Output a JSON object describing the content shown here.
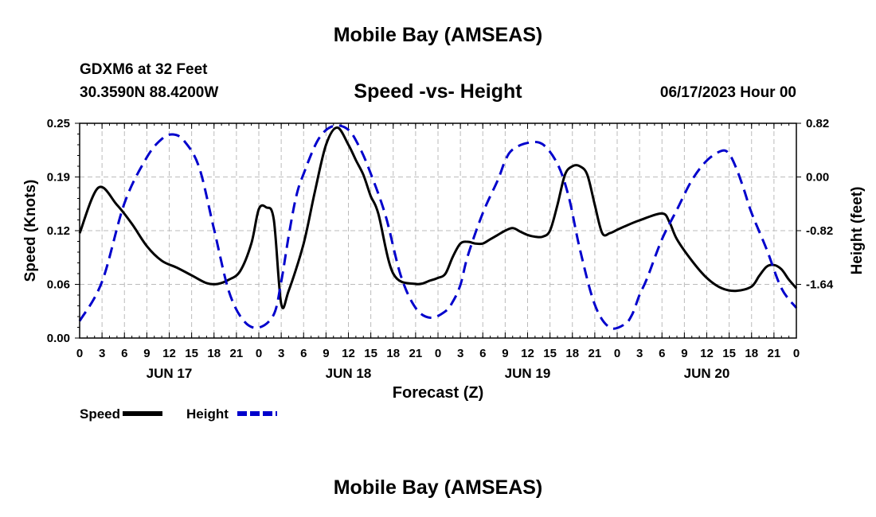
{
  "header": {
    "title": "Mobile Bay (AMSEAS)",
    "station": "GDXM6 at 32 Feet",
    "coords": "30.3590N  88.4200W",
    "subtitle": "Speed -vs- Height",
    "datetime": "06/17/2023 Hour 00"
  },
  "footer": {
    "title": "Mobile Bay (AMSEAS)"
  },
  "chart_data": {
    "type": "line",
    "title": "Speed -vs- Height",
    "xlabel": "Forecast (Z)",
    "ylabel_left": "Speed (Knots)",
    "ylabel_right": "Height (feet)",
    "x_unit": "forecast hour from 06/17/2023 00Z",
    "x_range": [
      0,
      96
    ],
    "x_tick_labels": [
      "0",
      "3",
      "6",
      "9",
      "12",
      "15",
      "18",
      "21",
      "0",
      "3",
      "6",
      "9",
      "12",
      "15",
      "18",
      "21",
      "0",
      "3",
      "6",
      "9",
      "12",
      "15",
      "18",
      "21",
      "0",
      "3",
      "6",
      "9",
      "12",
      "15",
      "18",
      "21",
      "0"
    ],
    "day_labels": [
      "JUN 17",
      "JUN 18",
      "JUN 19",
      "JUN 20"
    ],
    "left_ticks": [
      "0.25",
      "0.19",
      "0.12",
      "0.06",
      "0.00"
    ],
    "right_ticks": [
      "0.82",
      "0.00",
      "-0.82",
      "-1.64"
    ],
    "ylim_left": [
      0,
      0.25
    ],
    "ylim_right": [
      -2.46,
      0.82
    ],
    "grid": true,
    "legend_position": "bottom-left",
    "series": [
      {
        "name": "Speed",
        "axis": "left",
        "color": "#000000",
        "style": "solid",
        "x": [
          0,
          2.5,
          5,
          7,
          9,
          11,
          13,
          15,
          17,
          18.5,
          20,
          21.5,
          23,
          24,
          25,
          26,
          27,
          28,
          30,
          31.5,
          33,
          34.5,
          36,
          37,
          38,
          39,
          40,
          42,
          45,
          47,
          48,
          49,
          50,
          51,
          52,
          53,
          54,
          55,
          56,
          57,
          58,
          59,
          60,
          61,
          62,
          63,
          64,
          65,
          66,
          67,
          68,
          69,
          70,
          71,
          72,
          73,
          75,
          78,
          79,
          80,
          82,
          84,
          86,
          88,
          90,
          91,
          92,
          93,
          94,
          95,
          96
        ],
        "values": [
          0.122,
          0.175,
          0.155,
          0.133,
          0.107,
          0.09,
          0.082,
          0.073,
          0.064,
          0.063,
          0.068,
          0.078,
          0.11,
          0.15,
          0.152,
          0.138,
          0.04,
          0.055,
          0.11,
          0.17,
          0.225,
          0.245,
          0.225,
          0.207,
          0.19,
          0.165,
          0.145,
          0.075,
          0.063,
          0.067,
          0.07,
          0.075,
          0.095,
          0.11,
          0.112,
          0.11,
          0.11,
          0.115,
          0.12,
          0.125,
          0.128,
          0.124,
          0.12,
          0.118,
          0.118,
          0.125,
          0.155,
          0.19,
          0.2,
          0.2,
          0.19,
          0.155,
          0.122,
          0.122,
          0.126,
          0.13,
          0.137,
          0.145,
          0.135,
          0.115,
          0.09,
          0.07,
          0.058,
          0.055,
          0.06,
          0.072,
          0.083,
          0.085,
          0.08,
          0.068,
          0.058
        ]
      },
      {
        "name": "Height",
        "axis": "right",
        "color": "#0000cc",
        "style": "dashed",
        "x": [
          0,
          3,
          6,
          9,
          11,
          12.5,
          14,
          16,
          18,
          20,
          22,
          24,
          26,
          27,
          28,
          29,
          30,
          32,
          34,
          36,
          37.5,
          39,
          41,
          43,
          45,
          47,
          49,
          50,
          51,
          52,
          54,
          56,
          57,
          58,
          60,
          62,
          64,
          65.5,
          67,
          69,
          71,
          73,
          74,
          75,
          76,
          78,
          80,
          82,
          84,
          86,
          87,
          88,
          89,
          90,
          92,
          94,
          96
        ],
        "values": [
          -2.2,
          -1.6,
          -0.4,
          0.3,
          0.58,
          0.65,
          0.55,
          0.15,
          -0.8,
          -1.75,
          -2.2,
          -2.3,
          -2.1,
          -1.6,
          -0.9,
          -0.3,
          0.05,
          0.58,
          0.78,
          0.72,
          0.45,
          0.05,
          -0.6,
          -1.5,
          -2.0,
          -2.15,
          -2.05,
          -1.9,
          -1.65,
          -1.2,
          -0.55,
          -0.05,
          0.25,
          0.42,
          0.52,
          0.5,
          0.2,
          -0.3,
          -1.1,
          -1.95,
          -2.3,
          -2.25,
          -2.1,
          -1.8,
          -1.55,
          -0.95,
          -0.5,
          -0.05,
          0.25,
          0.4,
          0.35,
          0.12,
          -0.2,
          -0.55,
          -1.1,
          -1.7,
          -2.0
        ]
      }
    ],
    "legend": [
      {
        "label": "Speed",
        "color": "#000000",
        "style": "solid"
      },
      {
        "label": "Height",
        "color": "#0000cc",
        "style": "dashed"
      }
    ]
  }
}
